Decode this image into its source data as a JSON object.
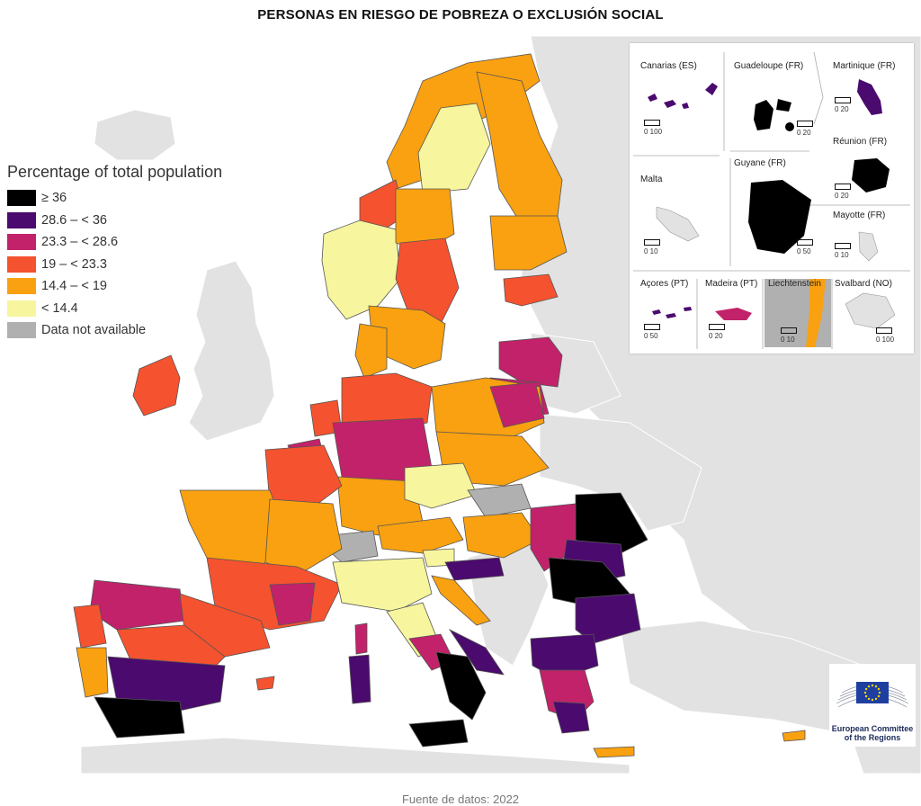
{
  "title": "PERSONAS EN RIESGO DE POBREZA O EXCLUSIÓN SOCIAL",
  "legend": {
    "title": "Percentage of total population",
    "items": [
      {
        "label": "≥ 36",
        "color": "#000000"
      },
      {
        "label": "28.6 – < 36",
        "color": "#4b0a6e"
      },
      {
        "label": "23.3 – < 28.6",
        "color": "#c2226a"
      },
      {
        "label": "19 – < 23.3",
        "color": "#f5522f"
      },
      {
        "label": "14.4 – < 19",
        "color": "#f9a110"
      },
      {
        "label": "< 14.4",
        "color": "#f7f69e"
      },
      {
        "label": "Data not available",
        "color": "#b0b0b0"
      }
    ]
  },
  "insets": [
    {
      "name": "Canarias (ES)",
      "scale": "0   100"
    },
    {
      "name": "Guadeloupe (FR)",
      "scale": "0   20"
    },
    {
      "name": "Martinique (FR)",
      "scale": "0   20"
    },
    {
      "name": "Malta",
      "scale": "0   10"
    },
    {
      "name": "Guyane (FR)",
      "scale": "0   50"
    },
    {
      "name": "Réunion (FR)",
      "scale": "0   20"
    },
    {
      "name": "Mayotte (FR)",
      "scale": "0   10"
    },
    {
      "name": "Açores (PT)",
      "scale": "0   50"
    },
    {
      "name": "Madeira (PT)",
      "scale": "0   20"
    },
    {
      "name": "Liechtenstein",
      "scale": "0   10"
    },
    {
      "name": "Svalbard (NO)",
      "scale": "0 100"
    }
  ],
  "logo": {
    "line1": "European Committee",
    "line2": "of the Regions"
  },
  "source": "Fuente de datos: 2022",
  "colors": {
    "sea": "#ffffff",
    "land_other": "#e2e2e2",
    "border": "#555555"
  }
}
